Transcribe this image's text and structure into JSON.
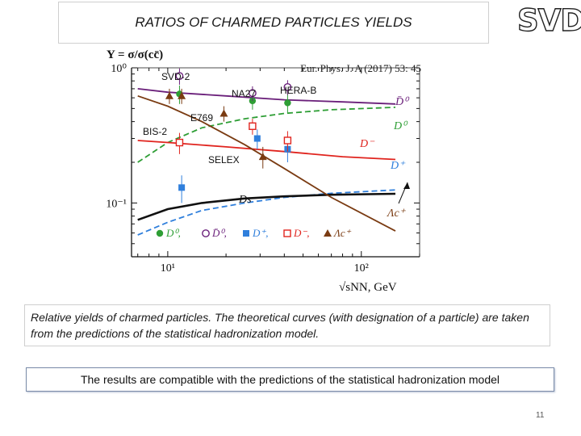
{
  "slide": {
    "title": "RATIOS OF CHARMED PARTICLES YIELDS",
    "logo_text": "SVD",
    "caption": "Relative yields of charmed particles. The theoretical curves (with designation of a particle) are taken from the predictions of the statistical hadronization  model.",
    "conclusion": "The results are compatible with the predictions of the statistical hadronization model",
    "page_number": "11"
  },
  "chart_data": {
    "type": "scatter",
    "reference": "Eur. Phys. J. A (2017) 53: 45",
    "ylabel": "Y = σ/σ(cc̄)",
    "xlabel": "√sNN, GeV",
    "xscale": "log",
    "yscale": "log",
    "xlim": [
      6.5,
      200
    ],
    "ylim": [
      0.04,
      1.0
    ],
    "xticks": [
      "10¹",
      "10²"
    ],
    "yticks": [
      "10⁰",
      "10⁻¹"
    ],
    "experiments": [
      "SVD-2",
      "NA27",
      "HERA-B",
      "E769",
      "BIS-2",
      "SELEX"
    ],
    "theory_curves": [
      {
        "name": "D̄⁰",
        "color": "#6a1f7a",
        "dash": "solid",
        "x": [
          7,
          10,
          20,
          40,
          80,
          150
        ],
        "y": [
          0.7,
          0.66,
          0.62,
          0.58,
          0.56,
          0.54
        ]
      },
      {
        "name": "D⁰",
        "color": "#2e9e35",
        "dash": "dashed",
        "x": [
          7,
          10,
          15,
          25,
          40,
          70,
          150
        ],
        "y": [
          0.2,
          0.28,
          0.36,
          0.42,
          0.46,
          0.49,
          0.51
        ]
      },
      {
        "name": "D⁻",
        "color": "#e0241e",
        "dash": "solid",
        "x": [
          7,
          10,
          20,
          40,
          80,
          150
        ],
        "y": [
          0.29,
          0.28,
          0.26,
          0.24,
          0.22,
          0.21
        ]
      },
      {
        "name": "D⁺",
        "color": "#2f7fdc",
        "dash": "dashed",
        "x": [
          7,
          10,
          15,
          25,
          40,
          70,
          150
        ],
        "y": [
          0.058,
          0.072,
          0.088,
          0.1,
          0.11,
          0.118,
          0.125
        ]
      },
      {
        "name": "Ds",
        "color": "#111111",
        "dash": "solid",
        "x": [
          7,
          10,
          15,
          25,
          40,
          70,
          150
        ],
        "y": [
          0.075,
          0.09,
          0.1,
          0.108,
          0.112,
          0.115,
          0.117
        ]
      },
      {
        "name": "Λc⁺",
        "color": "#7a3b12",
        "dash": "solid",
        "x": [
          7,
          10,
          15,
          25,
          40,
          70,
          150
        ],
        "y": [
          0.62,
          0.52,
          0.4,
          0.27,
          0.18,
          0.11,
          0.062
        ]
      }
    ],
    "points": [
      {
        "particle": "D⁰",
        "marker": "circle-filled",
        "color": "#2e9e35",
        "x": [
          11.5,
          27.4,
          41.6
        ],
        "y": [
          0.64,
          0.57,
          0.55
        ],
        "err": [
          0.1,
          0.08,
          0.09
        ]
      },
      {
        "particle": "D̄⁰",
        "marker": "circle-open",
        "color": "#6a1f7a",
        "x": [
          11.5,
          27.4,
          41.6
        ],
        "y": [
          0.87,
          0.65,
          0.72
        ],
        "err": [
          0.12,
          0.08,
          0.09
        ]
      },
      {
        "particle": "D⁺",
        "marker": "square-filled",
        "color": "#2f7fdc",
        "x": [
          11.8,
          29.0,
          41.6
        ],
        "y": [
          0.13,
          0.3,
          0.25
        ],
        "err": [
          0.03,
          0.05,
          0.05
        ]
      },
      {
        "particle": "D⁻",
        "marker": "square-open",
        "color": "#e0241e",
        "x": [
          11.5,
          27.4,
          41.6
        ],
        "y": [
          0.28,
          0.37,
          0.29
        ],
        "err": [
          0.05,
          0.05,
          0.05
        ]
      },
      {
        "particle": "Λc⁺",
        "marker": "triangle",
        "color": "#7a3b12",
        "x": [
          10.2,
          11.8,
          19.5,
          31.0
        ],
        "y": [
          0.62,
          0.62,
          0.46,
          0.22
        ],
        "err": [
          0.08,
          0.08,
          0.06,
          0.04
        ]
      }
    ],
    "legend": [
      "D⁰,",
      "D̄⁰,",
      "D⁺,",
      "D⁻,",
      "Λc⁺"
    ]
  }
}
